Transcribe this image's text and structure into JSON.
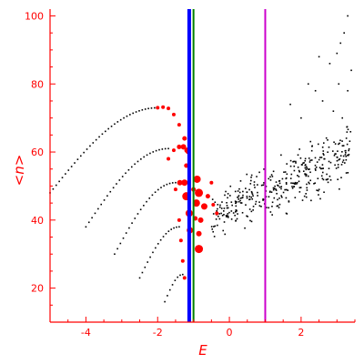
{
  "chart_data": {
    "type": "scatter",
    "title": "",
    "xlabel": "E",
    "ylabel": "<n>",
    "xlim": [
      -5,
      3.5
    ],
    "ylim": [
      10,
      102
    ],
    "xticks": [
      -4,
      -2,
      0,
      2
    ],
    "yticks": [
      20,
      40,
      60,
      80,
      100
    ],
    "grid": false,
    "legend": "none",
    "colors": {
      "axes": "#ff0000",
      "points_black": "#000000",
      "points_red": "#ff0000",
      "line_blue": "#0000ff",
      "line_green": "#008000",
      "line_magenta": "#cc00cc"
    },
    "vertical_lines": [
      {
        "x": -1.12,
        "color": "#0000ff"
      },
      {
        "x": -1.0,
        "color": "#008000"
      },
      {
        "x": 1.0,
        "color": "#cc00cc"
      }
    ],
    "chains": [
      {
        "x_start": -5.0,
        "y_start": 48.0,
        "x_end": -2.0,
        "y_end": 73.0,
        "count": 36
      },
      {
        "x_start": -4.0,
        "y_start": 38.0,
        "x_end": -1.7,
        "y_end": 61.0,
        "count": 28
      },
      {
        "x_start": -3.2,
        "y_start": 30.0,
        "x_end": -1.5,
        "y_end": 51.0,
        "count": 22
      },
      {
        "x_start": -2.5,
        "y_start": 23.0,
        "x_end": -1.4,
        "y_end": 38.0,
        "count": 16
      },
      {
        "x_start": -1.8,
        "y_start": 16.0,
        "x_end": -1.3,
        "y_end": 24.0,
        "count": 8
      }
    ],
    "red_points": [
      {
        "x": -2.0,
        "y": 73.0,
        "r": 2
      },
      {
        "x": -1.85,
        "y": 73.2,
        "r": 2
      },
      {
        "x": -1.7,
        "y": 72.8,
        "r": 2
      },
      {
        "x": -1.55,
        "y": 71.0,
        "r": 2
      },
      {
        "x": -1.4,
        "y": 68.0,
        "r": 2
      },
      {
        "x": -1.25,
        "y": 64.0,
        "r": 2.5
      },
      {
        "x": -1.15,
        "y": 60.0,
        "r": 2.5
      },
      {
        "x": -1.7,
        "y": 58.0,
        "r": 2
      },
      {
        "x": -1.55,
        "y": 60.5,
        "r": 2
      },
      {
        "x": -1.4,
        "y": 61.5,
        "r": 2.5
      },
      {
        "x": -1.28,
        "y": 61.5,
        "r": 3
      },
      {
        "x": -1.18,
        "y": 60.5,
        "r": 3
      },
      {
        "x": -1.5,
        "y": 49.0,
        "r": 2
      },
      {
        "x": -1.38,
        "y": 51.0,
        "r": 3
      },
      {
        "x": -1.25,
        "y": 51.0,
        "r": 3.5
      },
      {
        "x": -1.2,
        "y": 47.0,
        "r": 4.5
      },
      {
        "x": -1.12,
        "y": 42.0,
        "r": 4
      },
      {
        "x": -1.1,
        "y": 37.0,
        "r": 3.5
      },
      {
        "x": -0.9,
        "y": 52.0,
        "r": 4
      },
      {
        "x": -0.85,
        "y": 48.0,
        "r": 4.5
      },
      {
        "x": -0.92,
        "y": 45.0,
        "r": 4
      },
      {
        "x": -0.7,
        "y": 44.0,
        "r": 3.5
      },
      {
        "x": -0.8,
        "y": 40.0,
        "r": 3
      },
      {
        "x": -0.85,
        "y": 36.0,
        "r": 3
      },
      {
        "x": -0.85,
        "y": 31.5,
        "r": 4.5
      },
      {
        "x": -0.6,
        "y": 47.0,
        "r": 2.5
      },
      {
        "x": -0.5,
        "y": 51.0,
        "r": 2
      },
      {
        "x": -0.45,
        "y": 44.5,
        "r": 2
      },
      {
        "x": -0.35,
        "y": 42.0,
        "r": 2
      },
      {
        "x": -1.4,
        "y": 40.0,
        "r": 2
      },
      {
        "x": -1.35,
        "y": 34.0,
        "r": 2
      },
      {
        "x": -1.3,
        "y": 28.0,
        "r": 2
      },
      {
        "x": -1.25,
        "y": 23.0,
        "r": 2
      },
      {
        "x": -1.2,
        "y": 56.0,
        "r": 2.5
      },
      {
        "x": -1.0,
        "y": 49.0,
        "r": 2.5
      },
      {
        "x": -0.95,
        "y": 40.5,
        "r": 2.5
      }
    ],
    "cloud": {
      "x_min": -0.5,
      "x_max": 3.4,
      "trend_at_x_min": 41.0,
      "trend_at_x_max": 60.0,
      "spread": 9.0,
      "count": 380,
      "high_tail": [
        [
          2.5,
          88.0
        ],
        [
          2.8,
          86.0
        ],
        [
          3.0,
          89.0
        ],
        [
          3.1,
          92.0
        ],
        [
          3.3,
          100.0
        ],
        [
          3.2,
          95.0
        ],
        [
          3.4,
          84.0
        ],
        [
          2.2,
          80.0
        ],
        [
          2.4,
          78.0
        ],
        [
          2.6,
          75.0
        ],
        [
          3.05,
          80.0
        ],
        [
          3.3,
          78.0
        ],
        [
          2.0,
          70.0
        ],
        [
          1.7,
          74.0
        ],
        [
          2.9,
          72.0
        ],
        [
          3.15,
          70.0
        ]
      ]
    }
  }
}
